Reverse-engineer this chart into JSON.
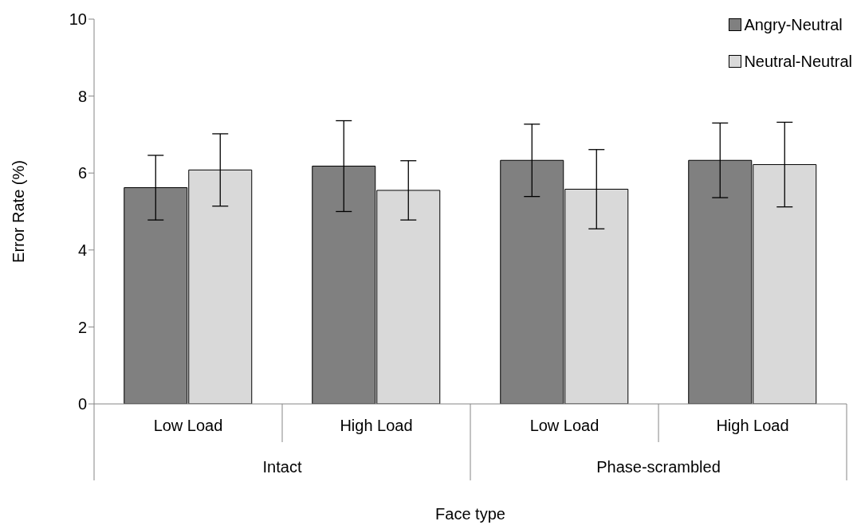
{
  "chart_data": {
    "type": "bar",
    "xlabel": "Face type",
    "ylabel": "Error Rate (%)",
    "categories": [
      "Low Load",
      "High Load",
      "Low Load",
      "High Load"
    ],
    "annotations": [
      "Intact",
      "Phase-scrambled"
    ],
    "series": [
      {
        "name": "Angry-Neutral",
        "color": "#808080",
        "values": [
          5.62,
          6.18,
          6.33,
          6.33
        ],
        "errors": [
          0.84,
          1.18,
          0.94,
          0.97
        ]
      },
      {
        "name": "Neutral-Neutral",
        "color": "#d9d9d9",
        "values": [
          6.08,
          5.55,
          5.58,
          6.22
        ],
        "errors": [
          0.94,
          0.77,
          1.03,
          1.1
        ]
      }
    ],
    "ylim": [
      0,
      10
    ],
    "yticks": [
      0,
      2,
      4,
      6,
      8,
      10
    ],
    "grid": false,
    "legend": "top right"
  }
}
